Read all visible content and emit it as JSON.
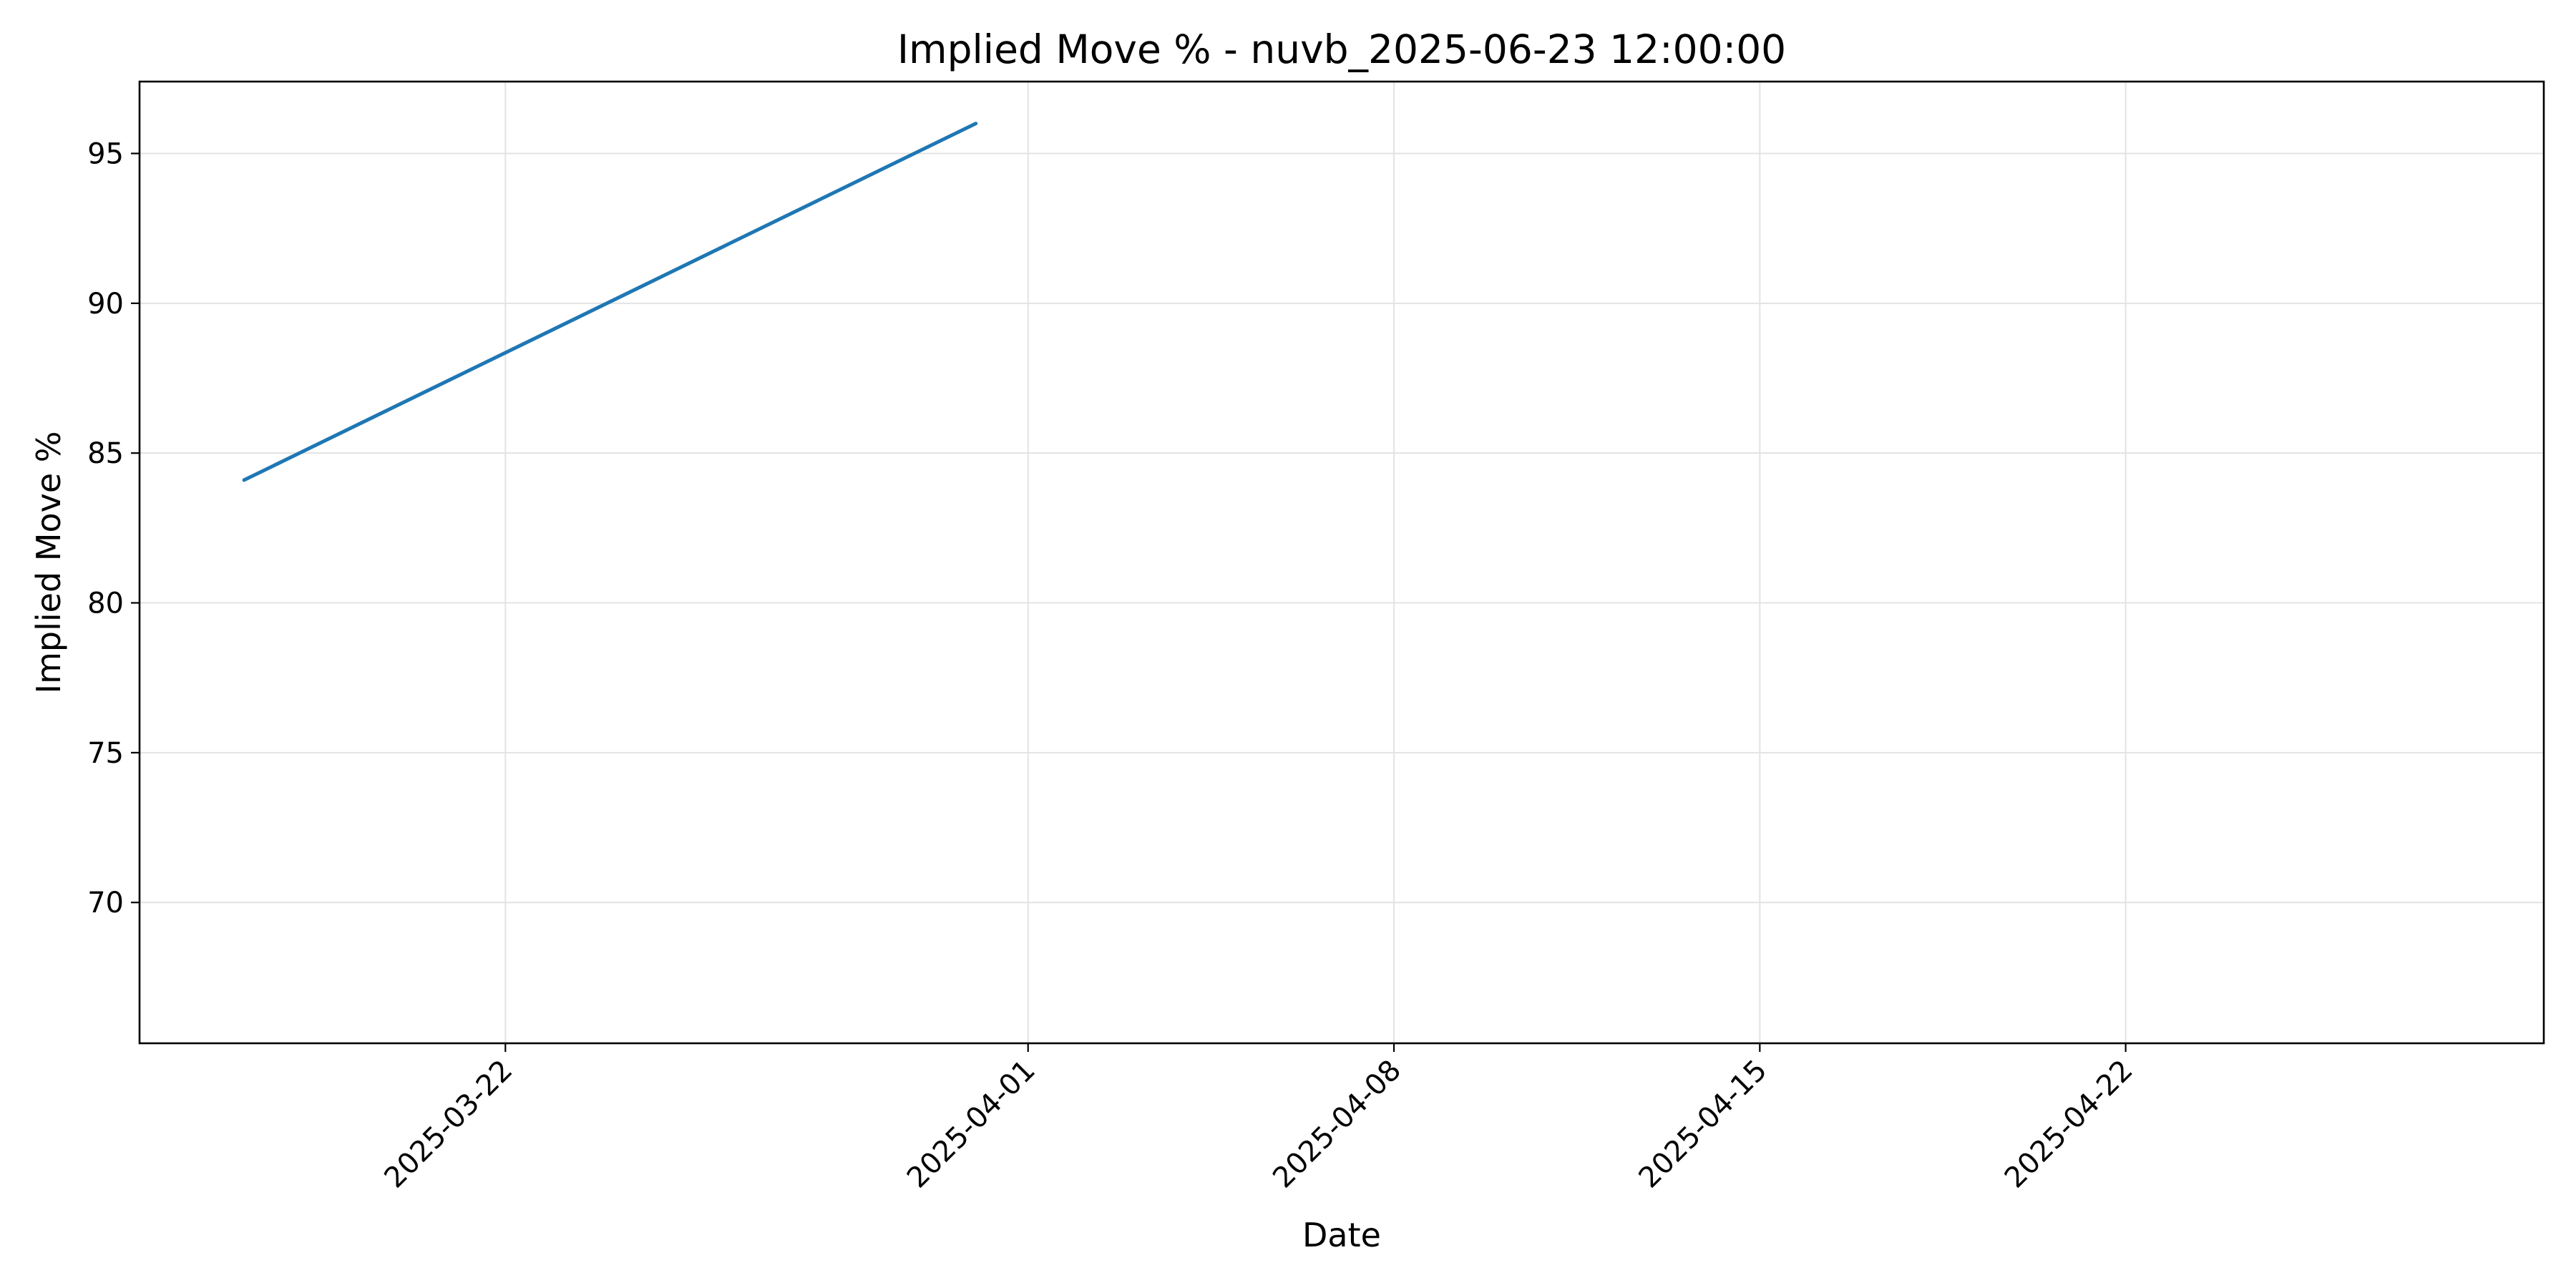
{
  "chart_data": {
    "type": "line",
    "title": "Implied Move % - nuvb_2025-06-23 12:00:00",
    "xlabel": "Date",
    "ylabel": "Implied Move %",
    "x_scale": "date",
    "xlim": [
      "2025-03-15",
      "2025-04-30"
    ],
    "ylim": [
      65.3,
      97.4
    ],
    "x_ticks": [
      "2025-03-22",
      "2025-04-01",
      "2025-04-08",
      "2025-04-15",
      "2025-04-22"
    ],
    "y_ticks": [
      70,
      75,
      80,
      85,
      90,
      95
    ],
    "grid": true,
    "legend": "none",
    "series": [
      {
        "color": "#1f77b4",
        "points": [
          {
            "x": "2025-03-17",
            "y": 84.1
          },
          {
            "x": "2025-03-31",
            "y": 96.0
          }
        ]
      }
    ]
  }
}
